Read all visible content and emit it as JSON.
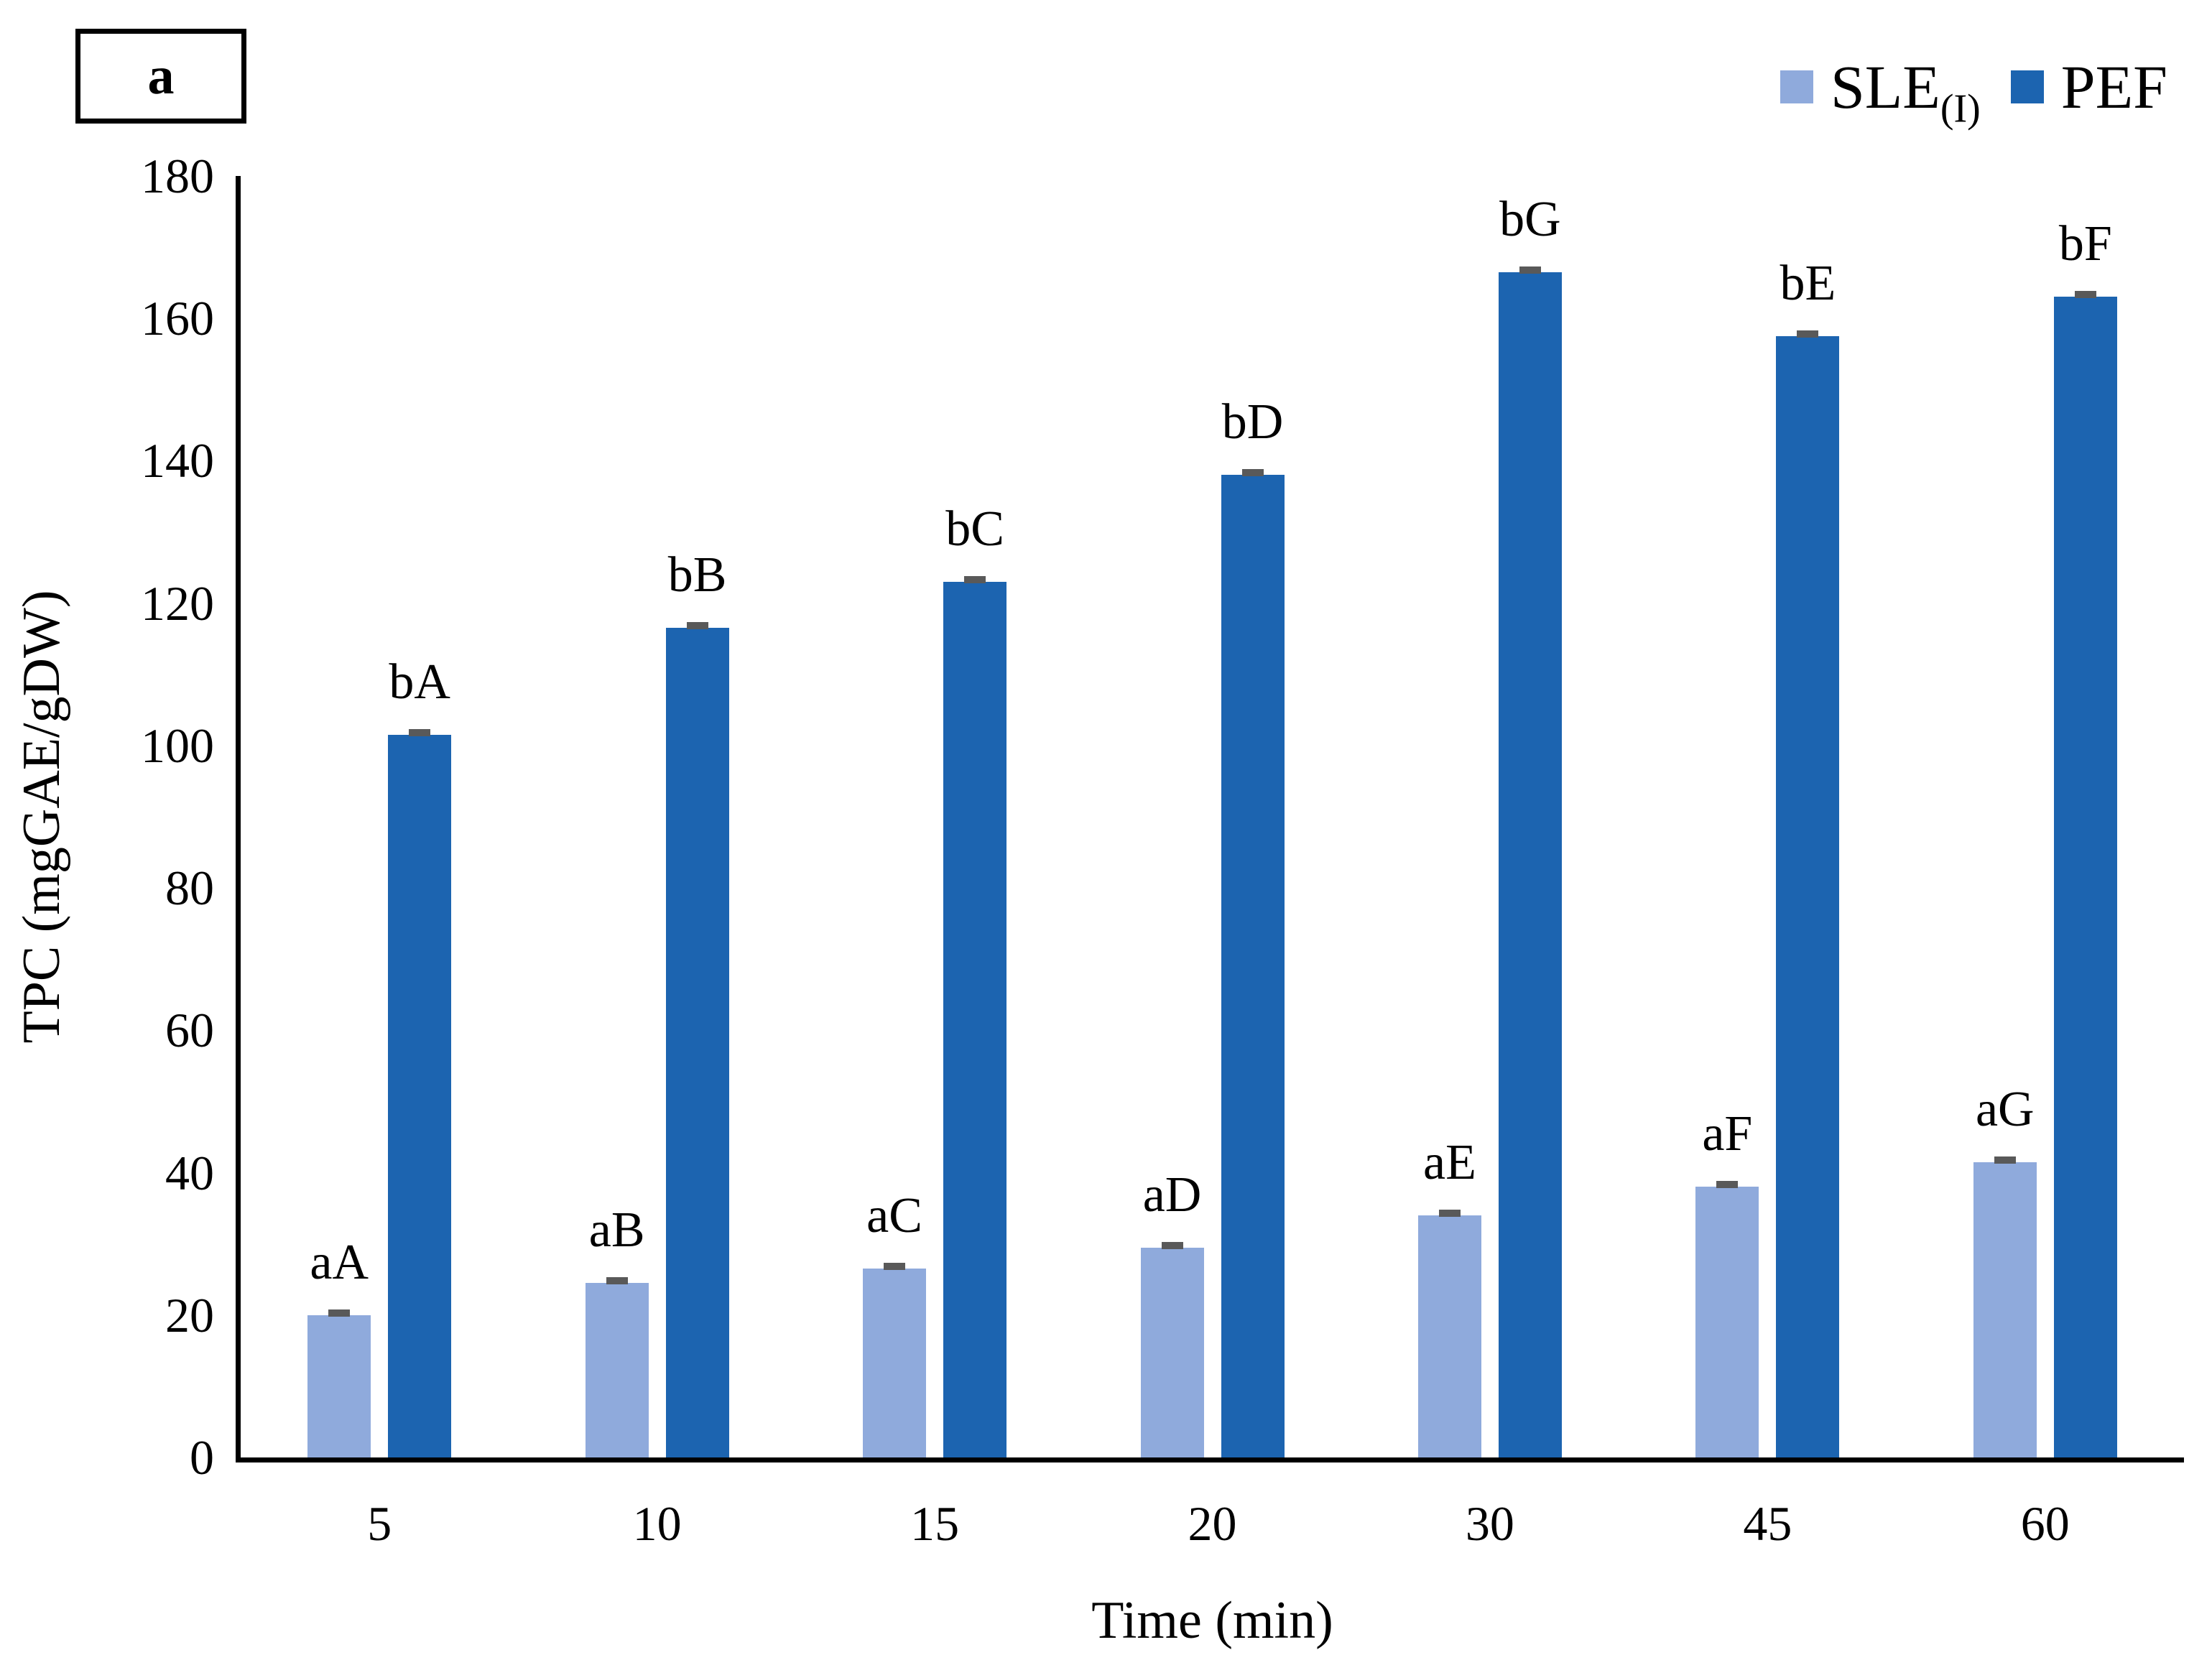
{
  "chart_data": {
    "type": "bar",
    "panel_label": "a",
    "xlabel": "Time (min)",
    "ylabel": "TPC (mgGAE/gDW)",
    "categories": [
      "5",
      "10",
      "15",
      "20",
      "30",
      "45",
      "60"
    ],
    "series": [
      {
        "name": "SLE",
        "name_sub": "(I)",
        "color": "#8FAADC",
        "values": [
          20,
          24.5,
          26.5,
          29.5,
          34,
          38,
          41.5
        ],
        "bar_labels": [
          "aA",
          "aB",
          "aC",
          "aD",
          "aE",
          "aF",
          "aG"
        ],
        "errors": [
          1,
          1,
          1,
          1,
          1,
          1,
          1
        ]
      },
      {
        "name": "PEF",
        "name_sub": "",
        "color": "#1C64B0",
        "values": [
          101.5,
          116.5,
          123,
          138,
          166.5,
          157.5,
          163
        ],
        "bar_labels": [
          "bA",
          "bB",
          "bC",
          "bD",
          "bG",
          "bE",
          "bF"
        ],
        "errors": [
          1,
          1,
          1,
          1,
          1,
          1,
          1
        ]
      }
    ],
    "y_ticks": [
      "0",
      "20",
      "40",
      "60",
      "80",
      "100",
      "120",
      "140",
      "160",
      "180"
    ],
    "ylim": [
      0,
      180
    ],
    "grid": false,
    "legend_position": "top-right",
    "error_cap_color": "#595959"
  }
}
